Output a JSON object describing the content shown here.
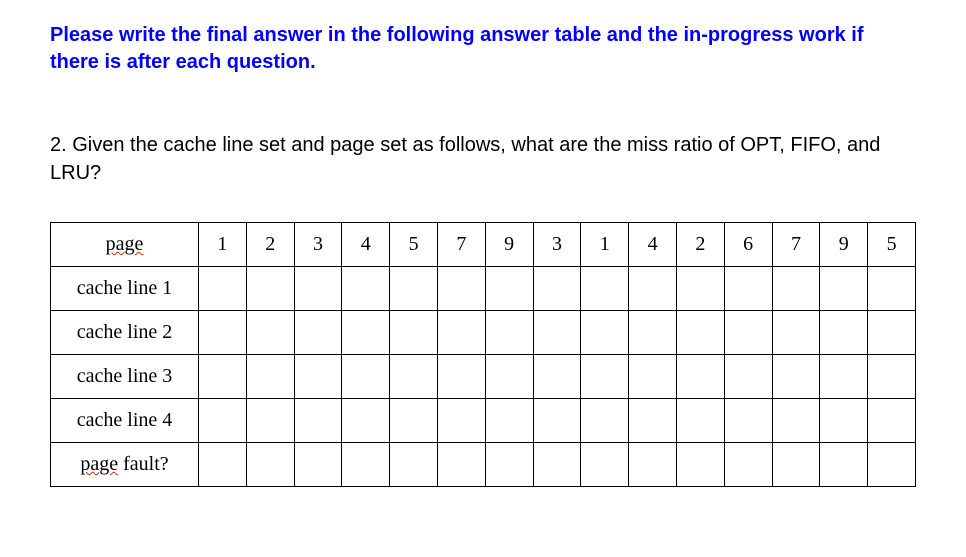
{
  "instruction": "Please write the final answer in the following answer table and the in-progress work if there is after each question.",
  "question": "2. Given the cache line set and page set as follows, what are the miss ratio of OPT, FIFO, and LRU?",
  "table": {
    "page_label_pre": "page",
    "row_labels": {
      "cl1": "cache line 1",
      "cl2": "cache line 2",
      "cl3": "cache line 3",
      "cl4": "cache line 4",
      "pf_pre": "page",
      "pf_post": " fault?"
    },
    "columns": [
      "1",
      "2",
      "3",
      "4",
      "5",
      "7",
      "9",
      "3",
      "1",
      "4",
      "2",
      "6",
      "7",
      "9",
      "5"
    ]
  },
  "style": {
    "instruction_color": "#0000ff",
    "border_color": "#000000",
    "wave_color": "#cc3300",
    "font_table": "Times New Roman",
    "font_body": "Arial"
  }
}
